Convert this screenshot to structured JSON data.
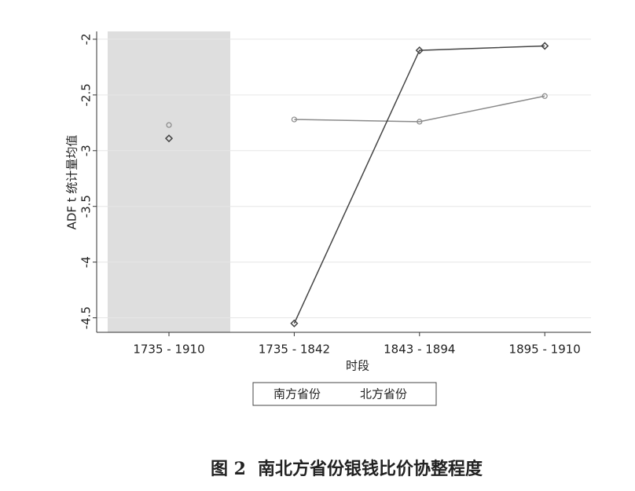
{
  "chart_data": {
    "type": "line",
    "xlabel": "时段",
    "ylabel": "ADF t 统计量均值",
    "categories": [
      "1735 - 1910",
      "1735 - 1842",
      "1843 - 1894",
      "1895 - 1910"
    ],
    "shaded": [
      true,
      false,
      false,
      false
    ],
    "series": [
      {
        "name": "南方省份",
        "color": "#8a8a8a",
        "marker": "circle",
        "values": [
          -2.77,
          -2.72,
          -2.74,
          -2.51
        ]
      },
      {
        "name": "北方省份",
        "color": "#454545",
        "marker": "diamond",
        "values": [
          -2.89,
          -4.55,
          -2.1,
          -2.06
        ]
      }
    ],
    "ylim": [
      -4.63,
      -1.93
    ],
    "yticks": [
      -2,
      -2.5,
      -3,
      -3.5,
      -4,
      -4.5
    ],
    "grid": true,
    "caption_label": "图 2",
    "caption": "南北方省份银钱比价协整程度"
  }
}
